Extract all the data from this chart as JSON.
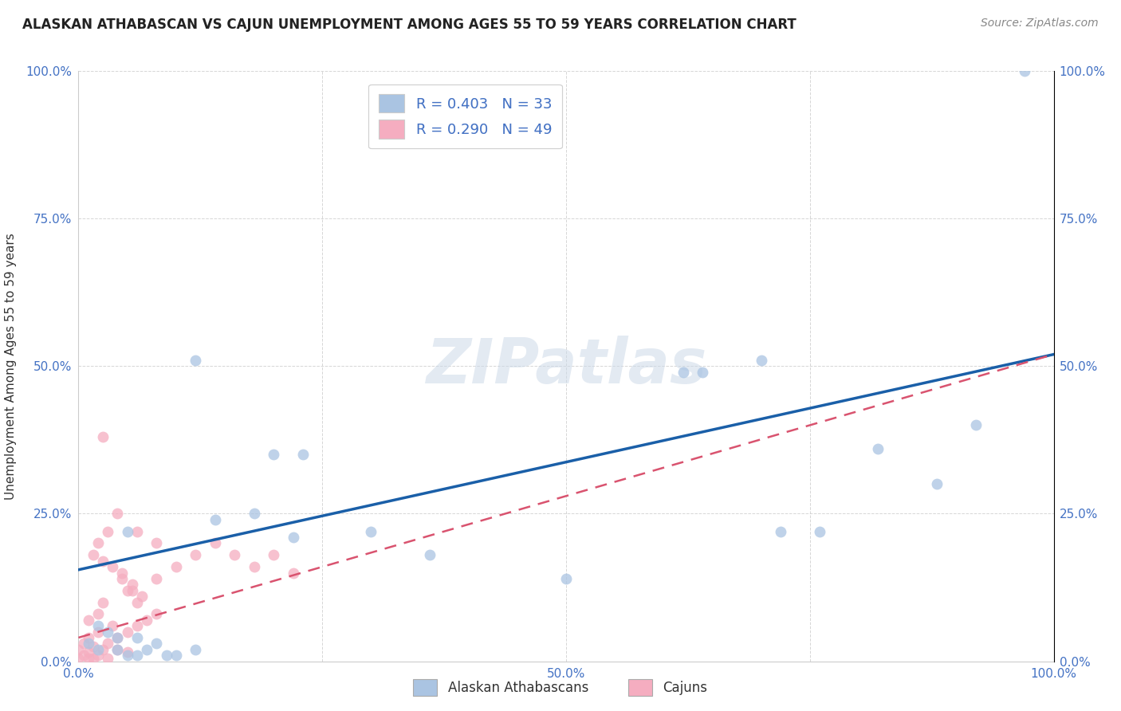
{
  "title": "ALASKAN ATHABASCAN VS CAJUN UNEMPLOYMENT AMONG AGES 55 TO 59 YEARS CORRELATION CHART",
  "source": "Source: ZipAtlas.com",
  "ylabel": "Unemployment Among Ages 55 to 59 years",
  "xlim": [
    0,
    1.0
  ],
  "ylim": [
    0,
    1.0
  ],
  "xticks": [
    0.0,
    0.25,
    0.5,
    0.75,
    1.0
  ],
  "yticks": [
    0.0,
    0.25,
    0.5,
    0.75,
    1.0
  ],
  "xticklabels": [
    "0.0%",
    "",
    "50.0%",
    "",
    "100.0%"
  ],
  "yticklabels": [
    "0.0%",
    "25.0%",
    "50.0%",
    "75.0%",
    "100.0%"
  ],
  "athabascan_color": "#aac4e2",
  "cajun_color": "#f5adc0",
  "athabascan_line_color": "#1a5fa8",
  "cajun_line_color": "#d9536f",
  "R_athabascan": 0.403,
  "N_athabascan": 33,
  "R_cajun": 0.29,
  "N_cajun": 49,
  "background_color": "#ffffff",
  "watermark": "ZIPatlas",
  "athabascan_x": [
    0.02,
    0.04,
    0.01,
    0.03,
    0.05,
    0.02,
    0.07,
    0.09,
    0.06,
    0.08,
    0.12,
    0.1,
    0.05,
    0.14,
    0.18,
    0.22,
    0.23,
    0.5,
    0.62,
    0.64,
    0.7,
    0.72,
    0.76,
    0.82,
    0.88,
    0.92,
    0.97,
    0.12,
    0.2,
    0.3,
    0.36,
    0.04,
    0.06
  ],
  "athabascan_y": [
    0.02,
    0.04,
    0.03,
    0.05,
    0.01,
    0.06,
    0.02,
    0.01,
    0.04,
    0.03,
    0.02,
    0.01,
    0.22,
    0.24,
    0.25,
    0.21,
    0.35,
    0.14,
    0.49,
    0.49,
    0.51,
    0.22,
    0.22,
    0.36,
    0.3,
    0.4,
    1.0,
    0.51,
    0.35,
    0.22,
    0.18,
    0.02,
    0.01
  ],
  "cajun_x": [
    0.0,
    0.005,
    0.01,
    0.015,
    0.0,
    0.005,
    0.01,
    0.015,
    0.02,
    0.025,
    0.01,
    0.02,
    0.03,
    0.025,
    0.035,
    0.04,
    0.05,
    0.06,
    0.07,
    0.08,
    0.05,
    0.06,
    0.045,
    0.055,
    0.015,
    0.025,
    0.035,
    0.045,
    0.055,
    0.065,
    0.02,
    0.03,
    0.08,
    0.1,
    0.12,
    0.14,
    0.16,
    0.18,
    0.2,
    0.22,
    0.025,
    0.04,
    0.06,
    0.08,
    0.01,
    0.02,
    0.03,
    0.04,
    0.05
  ],
  "cajun_y": [
    0.005,
    0.01,
    0.015,
    0.005,
    0.02,
    0.03,
    0.04,
    0.025,
    0.05,
    0.02,
    0.07,
    0.08,
    0.03,
    0.1,
    0.06,
    0.04,
    0.05,
    0.06,
    0.07,
    0.08,
    0.12,
    0.1,
    0.14,
    0.12,
    0.18,
    0.17,
    0.16,
    0.15,
    0.13,
    0.11,
    0.2,
    0.22,
    0.14,
    0.16,
    0.18,
    0.2,
    0.18,
    0.16,
    0.18,
    0.15,
    0.38,
    0.25,
    0.22,
    0.2,
    0.005,
    0.01,
    0.005,
    0.02,
    0.015
  ],
  "grid_color": "#cccccc",
  "tick_color": "#4472c4",
  "marker_size": 100,
  "title_fontsize": 12,
  "source_fontsize": 10,
  "ylabel_fontsize": 11,
  "tick_fontsize": 11
}
